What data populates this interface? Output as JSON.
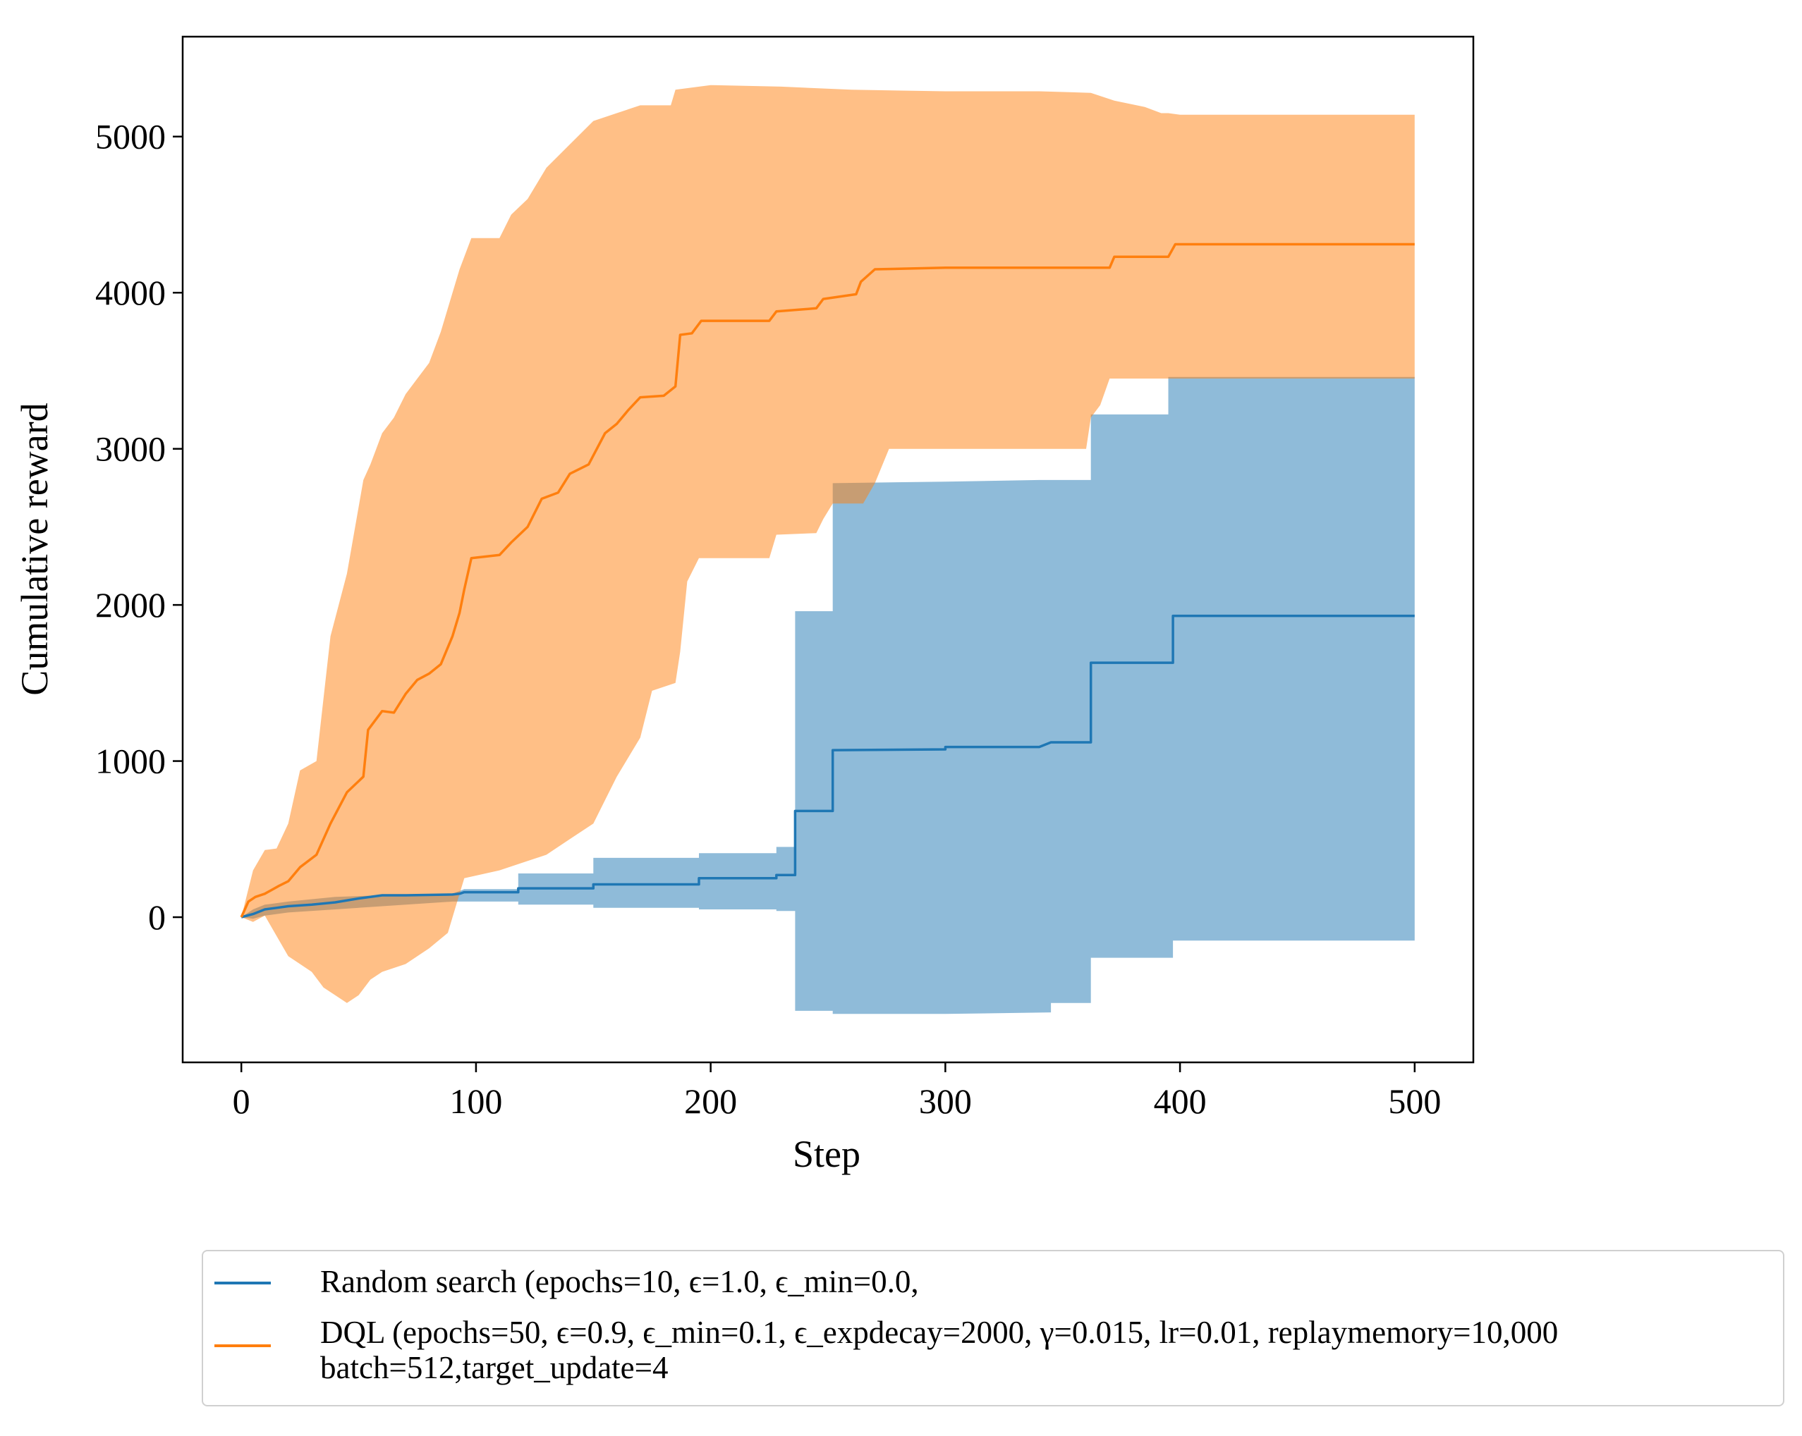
{
  "chart_data": {
    "type": "line",
    "title": "",
    "xlabel": "Step",
    "ylabel": "Cumulative reward",
    "xlim": [
      -25,
      525
    ],
    "ylim": [
      -930,
      5640
    ],
    "xticks": [
      0,
      100,
      200,
      300,
      400,
      500
    ],
    "xtick_labels": [
      "0",
      "100",
      "200",
      "300",
      "400",
      "500"
    ],
    "yticks": [
      0,
      1000,
      2000,
      3000,
      4000,
      5000
    ],
    "ytick_labels": [
      "0",
      "1000",
      "2000",
      "3000",
      "4000",
      "5000"
    ],
    "grid": false,
    "legend_position": "below",
    "series": [
      {
        "name": "Random search",
        "legend_label": "Random search (epochs=10, ϵ=1.0, ϵ_min=0.0,",
        "color": "#1f77b4",
        "fill_color": "#1f77b4",
        "fill_opacity": 0.5,
        "mean": [
          [
            0,
            0
          ],
          [
            5,
            20
          ],
          [
            10,
            50
          ],
          [
            15,
            60
          ],
          [
            20,
            70
          ],
          [
            30,
            80
          ],
          [
            40,
            95
          ],
          [
            50,
            120
          ],
          [
            60,
            140
          ],
          [
            70,
            140
          ],
          [
            90,
            145
          ],
          [
            93,
            150
          ],
          [
            95,
            160
          ],
          [
            118,
            160
          ],
          [
            118,
            185
          ],
          [
            150,
            185
          ],
          [
            150,
            210
          ],
          [
            195,
            210
          ],
          [
            195,
            250
          ],
          [
            228,
            250
          ],
          [
            228,
            270
          ],
          [
            236,
            270
          ],
          [
            236,
            680
          ],
          [
            252,
            680
          ],
          [
            252,
            1070
          ],
          [
            300,
            1075
          ],
          [
            300,
            1090
          ],
          [
            340,
            1090
          ],
          [
            345,
            1120
          ],
          [
            362,
            1120
          ],
          [
            362,
            1630
          ],
          [
            397,
            1630
          ],
          [
            397,
            1930
          ],
          [
            500,
            1930
          ]
        ],
        "upper": [
          [
            0,
            0
          ],
          [
            5,
            50
          ],
          [
            10,
            80
          ],
          [
            20,
            100
          ],
          [
            40,
            130
          ],
          [
            60,
            140
          ],
          [
            90,
            150
          ],
          [
            95,
            180
          ],
          [
            118,
            180
          ],
          [
            118,
            280
          ],
          [
            150,
            280
          ],
          [
            150,
            380
          ],
          [
            195,
            380
          ],
          [
            195,
            410
          ],
          [
            228,
            410
          ],
          [
            228,
            450
          ],
          [
            236,
            450
          ],
          [
            236,
            1960
          ],
          [
            252,
            1960
          ],
          [
            252,
            2780
          ],
          [
            300,
            2790
          ],
          [
            340,
            2800
          ],
          [
            362,
            2800
          ],
          [
            362,
            3220
          ],
          [
            395,
            3220
          ],
          [
            395,
            3460
          ],
          [
            500,
            3460
          ]
        ],
        "lower": [
          [
            0,
            0
          ],
          [
            5,
            -10
          ],
          [
            10,
            10
          ],
          [
            20,
            30
          ],
          [
            40,
            50
          ],
          [
            60,
            70
          ],
          [
            90,
            100
          ],
          [
            118,
            100
          ],
          [
            118,
            80
          ],
          [
            150,
            80
          ],
          [
            150,
            60
          ],
          [
            195,
            60
          ],
          [
            195,
            50
          ],
          [
            228,
            50
          ],
          [
            228,
            40
          ],
          [
            236,
            40
          ],
          [
            236,
            -600
          ],
          [
            252,
            -600
          ],
          [
            252,
            -620
          ],
          [
            300,
            -620
          ],
          [
            345,
            -610
          ],
          [
            345,
            -550
          ],
          [
            362,
            -550
          ],
          [
            362,
            -260
          ],
          [
            397,
            -260
          ],
          [
            397,
            -150
          ],
          [
            500,
            -150
          ]
        ]
      },
      {
        "name": "DQL",
        "legend_label": "DQL (epochs=50, ϵ=0.9, ϵ_min=0.1, ϵ_expdecay=2000, γ=0.015, lr=0.01, replaymemory=10,000\nbatch=512,target_update=4",
        "color": "#ff7f0e",
        "fill_color": "#ff7f0e",
        "fill_opacity": 0.5,
        "mean": [
          [
            0,
            0
          ],
          [
            3,
            100
          ],
          [
            6,
            130
          ],
          [
            10,
            150
          ],
          [
            16,
            200
          ],
          [
            20,
            230
          ],
          [
            25,
            320
          ],
          [
            32,
            400
          ],
          [
            38,
            600
          ],
          [
            45,
            800
          ],
          [
            52,
            900
          ],
          [
            54,
            1200
          ],
          [
            60,
            1320
          ],
          [
            65,
            1310
          ],
          [
            70,
            1430
          ],
          [
            75,
            1520
          ],
          [
            80,
            1560
          ],
          [
            85,
            1620
          ],
          [
            90,
            1800
          ],
          [
            93,
            1950
          ],
          [
            95,
            2100
          ],
          [
            98,
            2300
          ],
          [
            110,
            2320
          ],
          [
            115,
            2400
          ],
          [
            122,
            2500
          ],
          [
            128,
            2680
          ],
          [
            135,
            2720
          ],
          [
            140,
            2840
          ],
          [
            148,
            2900
          ],
          [
            155,
            3100
          ],
          [
            160,
            3160
          ],
          [
            165,
            3250
          ],
          [
            170,
            3330
          ],
          [
            180,
            3340
          ],
          [
            185,
            3400
          ],
          [
            187,
            3730
          ],
          [
            192,
            3740
          ],
          [
            196,
            3820
          ],
          [
            225,
            3820
          ],
          [
            228,
            3880
          ],
          [
            245,
            3900
          ],
          [
            248,
            3960
          ],
          [
            262,
            3990
          ],
          [
            264,
            4070
          ],
          [
            270,
            4150
          ],
          [
            300,
            4160
          ],
          [
            330,
            4160
          ],
          [
            370,
            4160
          ],
          [
            372,
            4230
          ],
          [
            395,
            4230
          ],
          [
            398,
            4310
          ],
          [
            500,
            4310
          ]
        ],
        "upper": [
          [
            0,
            0
          ],
          [
            5,
            300
          ],
          [
            10,
            430
          ],
          [
            15,
            440
          ],
          [
            20,
            600
          ],
          [
            25,
            940
          ],
          [
            32,
            1000
          ],
          [
            38,
            1800
          ],
          [
            45,
            2200
          ],
          [
            52,
            2800
          ],
          [
            55,
            2900
          ],
          [
            60,
            3100
          ],
          [
            65,
            3200
          ],
          [
            70,
            3350
          ],
          [
            75,
            3450
          ],
          [
            80,
            3550
          ],
          [
            85,
            3750
          ],
          [
            90,
            4000
          ],
          [
            93,
            4150
          ],
          [
            98,
            4350
          ],
          [
            110,
            4350
          ],
          [
            115,
            4500
          ],
          [
            122,
            4600
          ],
          [
            130,
            4800
          ],
          [
            140,
            4950
          ],
          [
            150,
            5100
          ],
          [
            160,
            5150
          ],
          [
            170,
            5200
          ],
          [
            183,
            5200
          ],
          [
            185,
            5300
          ],
          [
            200,
            5330
          ],
          [
            230,
            5320
          ],
          [
            260,
            5300
          ],
          [
            300,
            5290
          ],
          [
            340,
            5290
          ],
          [
            362,
            5280
          ],
          [
            372,
            5230
          ],
          [
            385,
            5190
          ],
          [
            392,
            5150
          ],
          [
            395,
            5150
          ],
          [
            400,
            5140
          ],
          [
            500,
            5140
          ]
        ],
        "lower": [
          [
            0,
            0
          ],
          [
            5,
            -30
          ],
          [
            10,
            10
          ],
          [
            20,
            -250
          ],
          [
            25,
            -300
          ],
          [
            30,
            -350
          ],
          [
            35,
            -450
          ],
          [
            40,
            -500
          ],
          [
            45,
            -550
          ],
          [
            50,
            -500
          ],
          [
            55,
            -400
          ],
          [
            60,
            -350
          ],
          [
            70,
            -300
          ],
          [
            80,
            -200
          ],
          [
            88,
            -100
          ],
          [
            92,
            100
          ],
          [
            95,
            250
          ],
          [
            110,
            300
          ],
          [
            120,
            350
          ],
          [
            130,
            400
          ],
          [
            140,
            500
          ],
          [
            150,
            600
          ],
          [
            160,
            900
          ],
          [
            170,
            1150
          ],
          [
            175,
            1450
          ],
          [
            185,
            1500
          ],
          [
            187,
            1700
          ],
          [
            190,
            2150
          ],
          [
            195,
            2300
          ],
          [
            225,
            2300
          ],
          [
            228,
            2450
          ],
          [
            245,
            2460
          ],
          [
            248,
            2550
          ],
          [
            252,
            2650
          ],
          [
            265,
            2650
          ],
          [
            270,
            2780
          ],
          [
            276,
            3000
          ],
          [
            300,
            3000
          ],
          [
            320,
            3000
          ],
          [
            360,
            3000
          ],
          [
            362,
            3200
          ],
          [
            366,
            3280
          ],
          [
            370,
            3450
          ],
          [
            500,
            3450
          ]
        ]
      }
    ]
  }
}
